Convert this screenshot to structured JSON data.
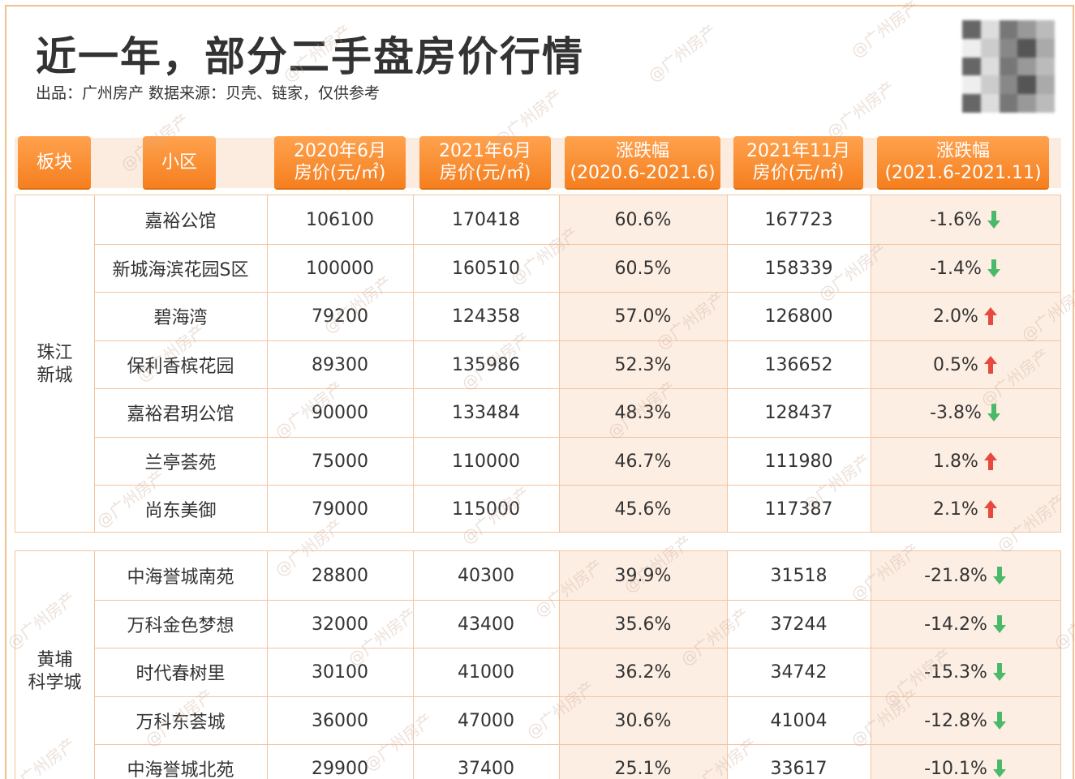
{
  "title": "近一年，部分二手盘房价行情",
  "subtitle": "出品：广州房产   数据来源：贝壳、链家，仅供参考",
  "watermark": "@广州房产",
  "colors": {
    "accent": "#f57f1f",
    "up": "#e8493f",
    "down": "#4cb96a",
    "shade": "#fdeee3",
    "border": "#f3c4a0"
  },
  "headers": {
    "area": "板块",
    "community": "小区",
    "p2020_l1": "2020年6月",
    "p2020_l2": "房价(元/㎡)",
    "p2021_l1": "2021年6月",
    "p2021_l2": "房价(元/㎡)",
    "chg1_l1": "涨跌幅",
    "chg1_l2": "(2020.6-2021.6)",
    "p2021n_l1": "2021年11月",
    "p2021n_l2": "房价(元/㎡)",
    "chg2_l1": "涨跌幅",
    "chg2_l2": "(2021.6-2021.11)"
  },
  "sections": [
    {
      "area_l1": "珠江",
      "area_l2": "新城",
      "rows": [
        {
          "name": "嘉裕公馆",
          "p2020": "106100",
          "p2021": "170418",
          "chg1": "60.6%",
          "p2021n": "167723",
          "chg2": "-1.6%",
          "dir": "down"
        },
        {
          "name": "新城海滨花园S区",
          "p2020": "100000",
          "p2021": "160510",
          "chg1": "60.5%",
          "p2021n": "158339",
          "chg2": "-1.4%",
          "dir": "down"
        },
        {
          "name": "碧海湾",
          "p2020": "79200",
          "p2021": "124358",
          "chg1": "57.0%",
          "p2021n": "126800",
          "chg2": "2.0%",
          "dir": "up"
        },
        {
          "name": "保利香槟花园",
          "p2020": "89300",
          "p2021": "135986",
          "chg1": "52.3%",
          "p2021n": "136652",
          "chg2": "0.5%",
          "dir": "up"
        },
        {
          "name": "嘉裕君玥公馆",
          "p2020": "90000",
          "p2021": "133484",
          "chg1": "48.3%",
          "p2021n": "128437",
          "chg2": "-3.8%",
          "dir": "down"
        },
        {
          "name": "兰亭荟苑",
          "p2020": "75000",
          "p2021": "110000",
          "chg1": "46.7%",
          "p2021n": "111980",
          "chg2": "1.8%",
          "dir": "up"
        },
        {
          "name": "尚东美御",
          "p2020": "79000",
          "p2021": "115000",
          "chg1": "45.6%",
          "p2021n": "117387",
          "chg2": "2.1%",
          "dir": "up"
        }
      ]
    },
    {
      "area_l1": "黄埔",
      "area_l2": "科学城",
      "rows": [
        {
          "name": "中海誉城南苑",
          "p2020": "28800",
          "p2021": "40300",
          "chg1": "39.9%",
          "p2021n": "31518",
          "chg2": "-21.8%",
          "dir": "down"
        },
        {
          "name": "万科金色梦想",
          "p2020": "32000",
          "p2021": "43400",
          "chg1": "35.6%",
          "p2021n": "37244",
          "chg2": "-14.2%",
          "dir": "down"
        },
        {
          "name": "时代春树里",
          "p2020": "30100",
          "p2021": "41000",
          "chg1": "36.2%",
          "p2021n": "34742",
          "chg2": "-15.3%",
          "dir": "down"
        },
        {
          "name": "万科东荟城",
          "p2020": "36000",
          "p2021": "47000",
          "chg1": "30.6%",
          "p2021n": "41004",
          "chg2": "-12.8%",
          "dir": "down"
        },
        {
          "name": "中海誉城北苑",
          "p2020": "29900",
          "p2021": "37400",
          "chg1": "25.1%",
          "p2021n": "33617",
          "chg2": "-10.1%",
          "dir": "down"
        }
      ]
    }
  ]
}
